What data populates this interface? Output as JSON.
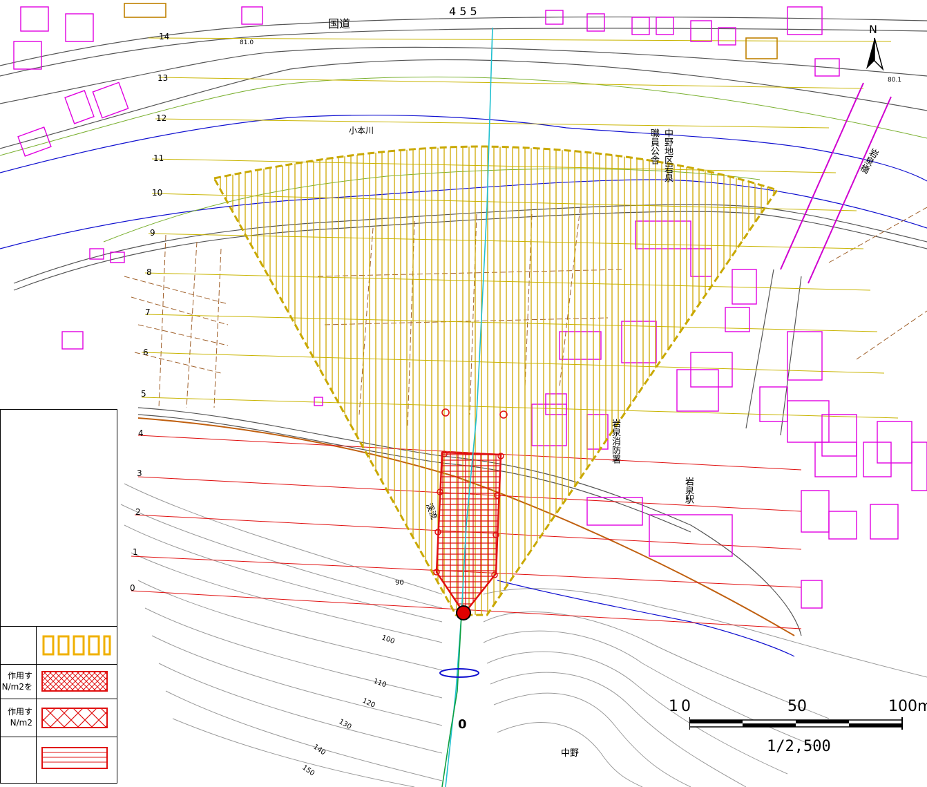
{
  "map": {
    "road_label": "国道",
    "road_number": "4 5 5",
    "river_label": "小本川",
    "river_elev": "81.0",
    "right_elev": "80.1",
    "north_label": "N",
    "bridge_label": "岩泉橋",
    "office_label": "中野地区岩泉職員公舎",
    "fire_station_label": "岩泉消防署",
    "station_label": "岩泉駅",
    "stream_label": "中野",
    "channel_label": "渓流",
    "section_numbers": [
      "14",
      "13",
      "12",
      "11",
      "10",
      "9",
      "8",
      "7",
      "6",
      "5",
      "4",
      "3",
      "2",
      "1",
      "0"
    ],
    "contours": [
      "90",
      "100",
      "110",
      "120",
      "130",
      "140",
      "150"
    ],
    "origin_label": "0",
    "bottom_label": "中野"
  },
  "legend": {
    "rows": [
      {
        "text": "",
        "symbol": "yellow-bars"
      },
      {
        "text": "作用す\nN/m2を",
        "symbol": "red-crosshatch-dense"
      },
      {
        "text": "作用す\nN/m2",
        "symbol": "red-crosshatch"
      },
      {
        "text": "",
        "symbol": "red-horizontal-lines"
      }
    ]
  },
  "scale": {
    "ticks": [
      "0",
      "50",
      "100m"
    ],
    "ratio": "1/2,500"
  },
  "colors": {
    "yellow_zone": "#c8a800",
    "red_zone": "#e01010",
    "building": "#e000e0",
    "road": "#555555",
    "river": "#1010d0"
  }
}
